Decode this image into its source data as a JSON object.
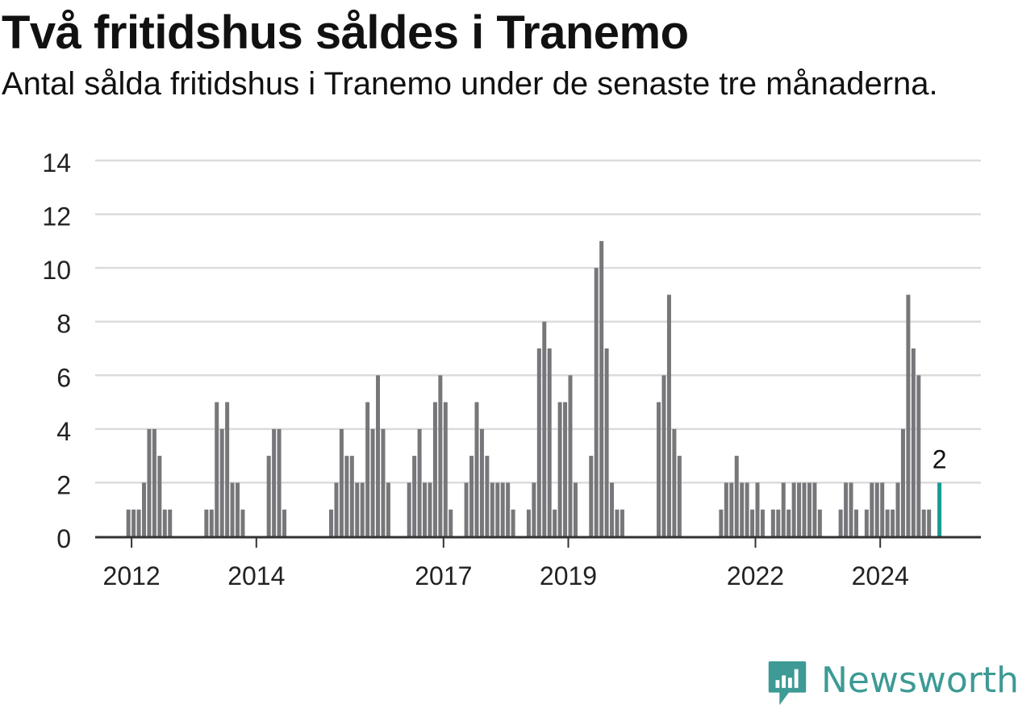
{
  "header": {
    "title": "Två fritidshus såldes i Tranemo",
    "subtitle": "Antal sålda fritidshus i Tranemo under de senaste tre månaderna."
  },
  "brand": {
    "name": "Newsworthy",
    "logo_icon": "newsworthy-chart-icon",
    "color": "#3d9a94"
  },
  "chart_data": {
    "type": "bar",
    "title": "Två fritidshus såldes i Tranemo",
    "subtitle": "Antal sålda fritidshus i Tranemo under de senaste tre månaderna.",
    "xlabel": "",
    "ylabel": "",
    "ylim": [
      0,
      14
    ],
    "yticks": [
      0,
      2,
      4,
      6,
      8,
      10,
      12,
      14
    ],
    "grid": true,
    "bar_color": "#77777b",
    "highlight_color": "#1a9a92",
    "x_start": "2011-06",
    "xtick_labels": [
      {
        "label": "2012",
        "month": "2012-01"
      },
      {
        "label": "2014",
        "month": "2014-01"
      },
      {
        "label": "2017",
        "month": "2017-01"
      },
      {
        "label": "2019",
        "month": "2019-01"
      },
      {
        "label": "2022",
        "month": "2022-01"
      },
      {
        "label": "2024",
        "month": "2024-01"
      }
    ],
    "highlight": {
      "month": "2024-12",
      "value": 2,
      "label": "2"
    },
    "values": [
      {
        "month": "2011-12",
        "value": 1
      },
      {
        "month": "2012-01",
        "value": 1
      },
      {
        "month": "2012-02",
        "value": 1
      },
      {
        "month": "2012-03",
        "value": 2
      },
      {
        "month": "2012-04",
        "value": 4
      },
      {
        "month": "2012-05",
        "value": 4
      },
      {
        "month": "2012-06",
        "value": 3
      },
      {
        "month": "2012-07",
        "value": 1
      },
      {
        "month": "2012-08",
        "value": 1
      },
      {
        "month": "2013-03",
        "value": 1
      },
      {
        "month": "2013-04",
        "value": 1
      },
      {
        "month": "2013-05",
        "value": 5
      },
      {
        "month": "2013-06",
        "value": 4
      },
      {
        "month": "2013-07",
        "value": 5
      },
      {
        "month": "2013-08",
        "value": 2
      },
      {
        "month": "2013-09",
        "value": 2
      },
      {
        "month": "2013-10",
        "value": 1
      },
      {
        "month": "2014-03",
        "value": 3
      },
      {
        "month": "2014-04",
        "value": 4
      },
      {
        "month": "2014-05",
        "value": 4
      },
      {
        "month": "2014-06",
        "value": 1
      },
      {
        "month": "2015-03",
        "value": 1
      },
      {
        "month": "2015-04",
        "value": 2
      },
      {
        "month": "2015-05",
        "value": 4
      },
      {
        "month": "2015-06",
        "value": 3
      },
      {
        "month": "2015-07",
        "value": 3
      },
      {
        "month": "2015-08",
        "value": 2
      },
      {
        "month": "2015-09",
        "value": 2
      },
      {
        "month": "2015-10",
        "value": 5
      },
      {
        "month": "2015-11",
        "value": 4
      },
      {
        "month": "2015-12",
        "value": 6
      },
      {
        "month": "2016-01",
        "value": 4
      },
      {
        "month": "2016-02",
        "value": 2
      },
      {
        "month": "2016-06",
        "value": 2
      },
      {
        "month": "2016-07",
        "value": 3
      },
      {
        "month": "2016-08",
        "value": 4
      },
      {
        "month": "2016-09",
        "value": 2
      },
      {
        "month": "2016-10",
        "value": 2
      },
      {
        "month": "2016-11",
        "value": 5
      },
      {
        "month": "2016-12",
        "value": 6
      },
      {
        "month": "2017-01",
        "value": 5
      },
      {
        "month": "2017-02",
        "value": 1
      },
      {
        "month": "2017-05",
        "value": 2
      },
      {
        "month": "2017-06",
        "value": 3
      },
      {
        "month": "2017-07",
        "value": 5
      },
      {
        "month": "2017-08",
        "value": 4
      },
      {
        "month": "2017-09",
        "value": 3
      },
      {
        "month": "2017-10",
        "value": 2
      },
      {
        "month": "2017-11",
        "value": 2
      },
      {
        "month": "2017-12",
        "value": 2
      },
      {
        "month": "2018-01",
        "value": 2
      },
      {
        "month": "2018-02",
        "value": 1
      },
      {
        "month": "2018-05",
        "value": 1
      },
      {
        "month": "2018-06",
        "value": 2
      },
      {
        "month": "2018-07",
        "value": 7
      },
      {
        "month": "2018-08",
        "value": 8
      },
      {
        "month": "2018-09",
        "value": 7
      },
      {
        "month": "2018-10",
        "value": 1
      },
      {
        "month": "2018-11",
        "value": 5
      },
      {
        "month": "2018-12",
        "value": 5
      },
      {
        "month": "2019-01",
        "value": 6
      },
      {
        "month": "2019-02",
        "value": 2
      },
      {
        "month": "2019-05",
        "value": 3
      },
      {
        "month": "2019-06",
        "value": 10
      },
      {
        "month": "2019-07",
        "value": 11
      },
      {
        "month": "2019-08",
        "value": 7
      },
      {
        "month": "2019-09",
        "value": 2
      },
      {
        "month": "2019-10",
        "value": 1
      },
      {
        "month": "2019-11",
        "value": 1
      },
      {
        "month": "2020-06",
        "value": 5
      },
      {
        "month": "2020-07",
        "value": 6
      },
      {
        "month": "2020-08",
        "value": 9
      },
      {
        "month": "2020-09",
        "value": 4
      },
      {
        "month": "2020-10",
        "value": 3
      },
      {
        "month": "2021-06",
        "value": 1
      },
      {
        "month": "2021-07",
        "value": 2
      },
      {
        "month": "2021-08",
        "value": 2
      },
      {
        "month": "2021-09",
        "value": 3
      },
      {
        "month": "2021-10",
        "value": 2
      },
      {
        "month": "2021-11",
        "value": 2
      },
      {
        "month": "2021-12",
        "value": 1
      },
      {
        "month": "2022-01",
        "value": 2
      },
      {
        "month": "2022-02",
        "value": 1
      },
      {
        "month": "2022-04",
        "value": 1
      },
      {
        "month": "2022-05",
        "value": 1
      },
      {
        "month": "2022-06",
        "value": 2
      },
      {
        "month": "2022-07",
        "value": 1
      },
      {
        "month": "2022-08",
        "value": 2
      },
      {
        "month": "2022-09",
        "value": 2
      },
      {
        "month": "2022-10",
        "value": 2
      },
      {
        "month": "2022-11",
        "value": 2
      },
      {
        "month": "2022-12",
        "value": 2
      },
      {
        "month": "2023-01",
        "value": 1
      },
      {
        "month": "2023-05",
        "value": 1
      },
      {
        "month": "2023-06",
        "value": 2
      },
      {
        "month": "2023-07",
        "value": 2
      },
      {
        "month": "2023-08",
        "value": 1
      },
      {
        "month": "2023-10",
        "value": 1
      },
      {
        "month": "2023-11",
        "value": 2
      },
      {
        "month": "2023-12",
        "value": 2
      },
      {
        "month": "2024-01",
        "value": 2
      },
      {
        "month": "2024-02",
        "value": 1
      },
      {
        "month": "2024-03",
        "value": 1
      },
      {
        "month": "2024-04",
        "value": 2
      },
      {
        "month": "2024-05",
        "value": 4
      },
      {
        "month": "2024-06",
        "value": 9
      },
      {
        "month": "2024-07",
        "value": 7
      },
      {
        "month": "2024-08",
        "value": 6
      },
      {
        "month": "2024-09",
        "value": 1
      },
      {
        "month": "2024-10",
        "value": 1
      }
    ]
  }
}
